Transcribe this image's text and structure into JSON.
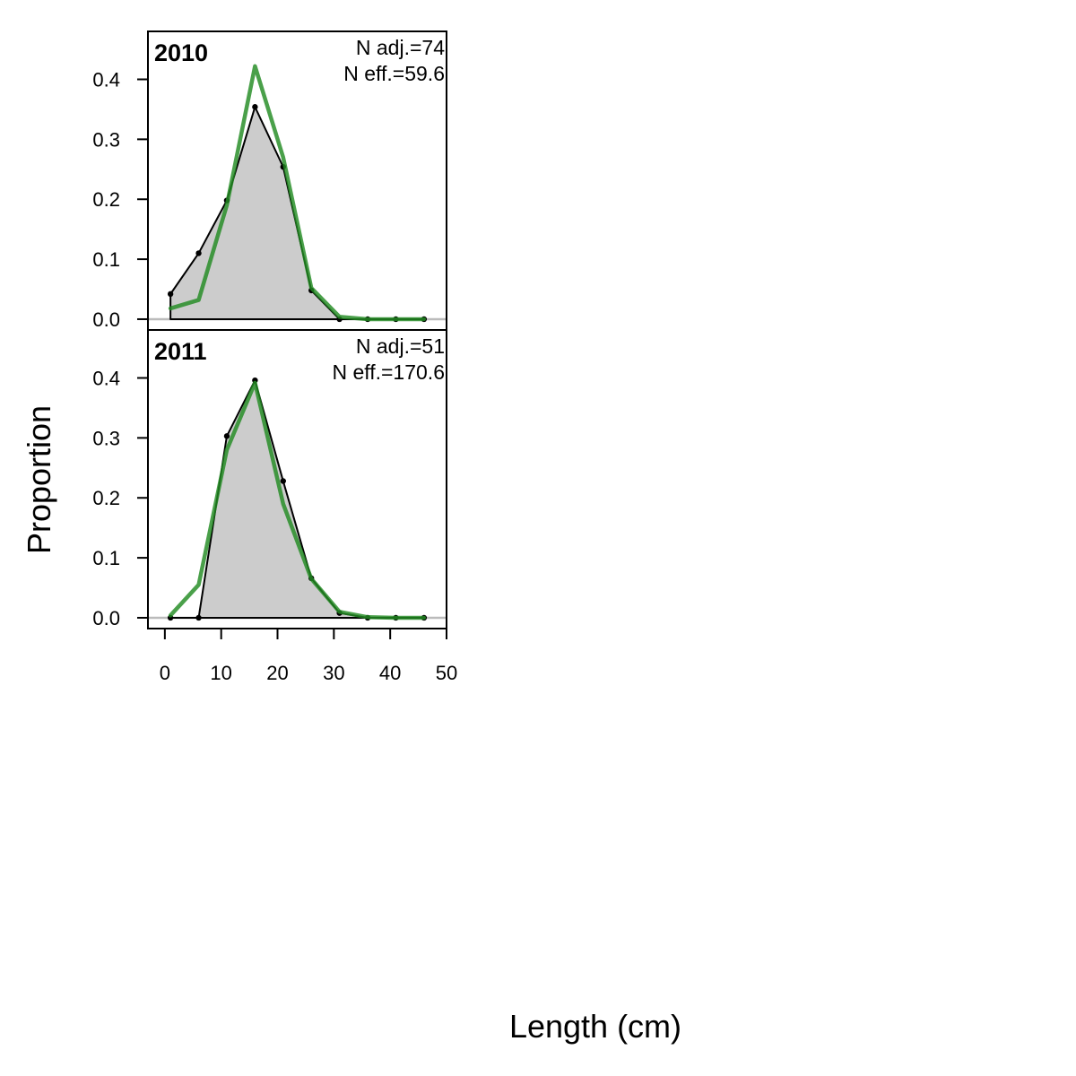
{
  "chart_data": {
    "type": "area",
    "xlabel": "Length (cm)",
    "ylabel": "Proportion",
    "xlim": [
      -3,
      50
    ],
    "ylim": [
      -0.018,
      0.48
    ],
    "x_ticks": [
      0,
      10,
      20,
      30,
      40,
      50
    ],
    "y_ticks": [
      0.0,
      0.1,
      0.2,
      0.3,
      0.4
    ],
    "y_tick_labels": [
      "0.0",
      "0.1",
      "0.2",
      "0.3",
      "0.4"
    ],
    "grid": false,
    "colors": {
      "observed_fill": "#cccccc",
      "observed_line": "#000000",
      "expected_line": "#228b22",
      "zero_line": "#bbbbbb"
    },
    "panels": [
      {
        "year": "2010",
        "n_adj": "N adj.=74",
        "n_eff": "N eff.=59.6",
        "x": [
          1,
          6,
          11,
          16,
          21,
          26,
          31,
          36,
          41,
          46
        ],
        "observed": [
          0.042,
          0.11,
          0.198,
          0.354,
          0.254,
          0.048,
          0.0,
          0.0,
          0.0,
          0.0
        ],
        "expected": [
          0.018,
          0.032,
          0.19,
          0.422,
          0.27,
          0.052,
          0.004,
          0.0,
          0.0,
          0.0
        ]
      },
      {
        "year": "2011",
        "n_adj": "N adj.=51",
        "n_eff": "N eff.=170.6",
        "x": [
          1,
          6,
          11,
          16,
          21,
          26,
          31,
          36,
          41,
          46
        ],
        "observed": [
          0.0,
          0.0,
          0.303,
          0.396,
          0.228,
          0.066,
          0.008,
          0.0,
          0.0,
          0.0
        ],
        "expected": [
          0.004,
          0.055,
          0.28,
          0.392,
          0.19,
          0.065,
          0.01,
          0.001,
          0.0,
          0.0
        ]
      }
    ]
  }
}
